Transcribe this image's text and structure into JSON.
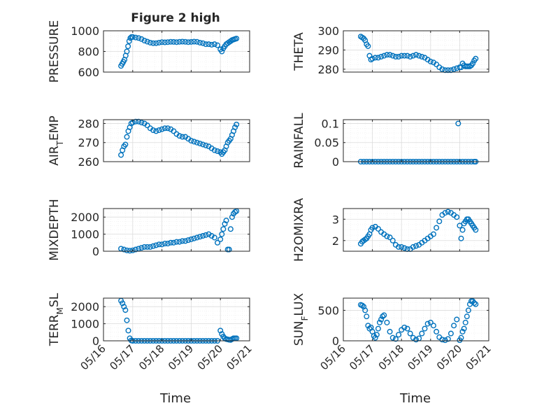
{
  "figure": {
    "title": "Figure 2 high"
  },
  "x_axis": {
    "label": "Time",
    "tick_labels": [
      "05/16",
      "05/17",
      "05/18",
      "05/19",
      "05/20",
      "05/21"
    ],
    "range": [
      0,
      5
    ]
  },
  "colors": {
    "marker": "#0072BD",
    "axes": "#262626",
    "grid": "#dcdcdc",
    "background": "#ffffff"
  },
  "chart_data": [
    {
      "type": "scatter",
      "ylabel": "PRESSURE",
      "ylim": [
        600,
        1000
      ],
      "yticks": [
        600,
        800,
        1000
      ],
      "ytick_labels": [
        "600",
        "800",
        "1000"
      ],
      "grid": true,
      "x": [
        0.6,
        0.64,
        0.68,
        0.72,
        0.76,
        0.8,
        0.84,
        0.88,
        0.92,
        0.96,
        1.0,
        1.1,
        1.2,
        1.3,
        1.4,
        1.5,
        1.6,
        1.7,
        1.8,
        1.9,
        2.0,
        2.1,
        2.2,
        2.3,
        2.4,
        2.5,
        2.6,
        2.7,
        2.8,
        2.9,
        3.0,
        3.1,
        3.2,
        3.3,
        3.4,
        3.5,
        3.6,
        3.7,
        3.8,
        3.9,
        4.0,
        4.05,
        4.1,
        4.15,
        4.2,
        4.25,
        4.3,
        4.35,
        4.4,
        4.45,
        4.5,
        4.55
      ],
      "y": [
        660,
        680,
        700,
        720,
        760,
        800,
        850,
        900,
        930,
        940,
        940,
        935,
        930,
        920,
        905,
        895,
        885,
        880,
        880,
        885,
        890,
        888,
        890,
        893,
        892,
        890,
        893,
        895,
        893,
        890,
        892,
        895,
        893,
        885,
        880,
        870,
        870,
        865,
        870,
        860,
        820,
        800,
        830,
        850,
        870,
        880,
        890,
        900,
        910,
        915,
        920,
        925
      ]
    },
    {
      "type": "scatter",
      "ylabel": "THETA",
      "ylim": [
        278.5,
        300
      ],
      "yticks": [
        280,
        290,
        300
      ],
      "ytick_labels": [
        "280",
        "290",
        "300"
      ],
      "grid": true,
      "x": [
        0.6,
        0.65,
        0.7,
        0.75,
        0.8,
        0.85,
        0.9,
        0.95,
        1.0,
        1.1,
        1.2,
        1.3,
        1.4,
        1.5,
        1.6,
        1.7,
        1.8,
        1.9,
        2.0,
        2.1,
        2.2,
        2.3,
        2.4,
        2.5,
        2.6,
        2.7,
        2.8,
        2.9,
        3.0,
        3.1,
        3.2,
        3.3,
        3.4,
        3.5,
        3.6,
        3.7,
        3.8,
        3.9,
        4.0,
        4.05,
        4.1,
        4.15,
        4.2,
        4.25,
        4.3,
        4.35,
        4.4,
        4.45,
        4.5,
        4.55
      ],
      "y": [
        297,
        296.5,
        296,
        295,
        293,
        292,
        287,
        285,
        285.5,
        286,
        286,
        286.5,
        287,
        287.5,
        287.5,
        287,
        286.5,
        286.5,
        287,
        287,
        287,
        286.5,
        287,
        287.5,
        287,
        286.5,
        286,
        285,
        284,
        283.5,
        282.5,
        281,
        280,
        279.5,
        279.5,
        279.5,
        280,
        280.5,
        281,
        281,
        283,
        282,
        281.5,
        281.5,
        281.5,
        281.5,
        282,
        283,
        284.5,
        285.5
      ]
    },
    {
      "type": "scatter",
      "ylabel": "AIR_TEMP",
      "ylim": [
        260,
        282
      ],
      "yticks": [
        260,
        270,
        280
      ],
      "ytick_labels": [
        "260",
        "270",
        "280"
      ],
      "grid": true,
      "x": [
        0.6,
        0.65,
        0.7,
        0.75,
        0.8,
        0.85,
        0.9,
        0.95,
        1.0,
        1.1,
        1.2,
        1.3,
        1.4,
        1.5,
        1.6,
        1.7,
        1.8,
        1.9,
        2.0,
        2.1,
        2.2,
        2.3,
        2.4,
        2.5,
        2.6,
        2.7,
        2.8,
        2.9,
        3.0,
        3.1,
        3.2,
        3.3,
        3.4,
        3.5,
        3.6,
        3.7,
        3.8,
        3.9,
        4.0,
        4.05,
        4.1,
        4.15,
        4.2,
        4.25,
        4.3,
        4.35,
        4.4,
        4.45,
        4.5,
        4.55
      ],
      "y": [
        263.5,
        266,
        268,
        269,
        273,
        276,
        278,
        280,
        280.5,
        281,
        281,
        280.5,
        280,
        279,
        277.5,
        276.5,
        276,
        276.5,
        277,
        277.5,
        277.5,
        277,
        276,
        274.5,
        273.5,
        273,
        273,
        272,
        271,
        270.5,
        270,
        269.5,
        269,
        268.5,
        268,
        267,
        266,
        265.5,
        265,
        264,
        265,
        266,
        268,
        270,
        271,
        272,
        274,
        276,
        278,
        279.5
      ]
    },
    {
      "type": "scatter",
      "ylabel": "RAINFALL",
      "ylim": [
        0,
        0.11
      ],
      "yticks": [
        0,
        0.05,
        0.1
      ],
      "ytick_labels": [
        "0",
        "0.05",
        "0.1"
      ],
      "grid": true,
      "x": [
        0.6,
        0.7,
        0.8,
        0.9,
        1.0,
        1.1,
        1.2,
        1.3,
        1.4,
        1.5,
        1.6,
        1.7,
        1.8,
        1.9,
        2.0,
        2.1,
        2.2,
        2.3,
        2.4,
        2.5,
        2.6,
        2.7,
        2.8,
        2.9,
        3.0,
        3.1,
        3.2,
        3.3,
        3.4,
        3.5,
        3.6,
        3.7,
        3.8,
        3.9,
        3.95,
        4.0,
        4.1,
        4.2,
        4.3,
        4.4,
        4.5,
        4.55
      ],
      "y": [
        0,
        0,
        0,
        0,
        0,
        0,
        0,
        0,
        0,
        0,
        0,
        0,
        0,
        0,
        0,
        0,
        0,
        0,
        0,
        0,
        0,
        0,
        0,
        0,
        0,
        0,
        0,
        0,
        0,
        0,
        0,
        0,
        0,
        0,
        0.1,
        0,
        0,
        0,
        0,
        0,
        0,
        0
      ]
    },
    {
      "type": "scatter",
      "ylabel": "MIXDEPTH",
      "ylim": [
        0,
        2500
      ],
      "yticks": [
        0,
        1000,
        2000
      ],
      "ytick_labels": [
        "0",
        "1000",
        "2000"
      ],
      "grid": true,
      "x": [
        0.6,
        0.7,
        0.8,
        0.9,
        1.0,
        1.1,
        1.2,
        1.3,
        1.4,
        1.5,
        1.6,
        1.7,
        1.8,
        1.9,
        2.0,
        2.1,
        2.2,
        2.3,
        2.4,
        2.5,
        2.6,
        2.7,
        2.8,
        2.9,
        3.0,
        3.1,
        3.2,
        3.3,
        3.4,
        3.5,
        3.6,
        3.7,
        3.8,
        3.9,
        4.0,
        4.05,
        4.1,
        4.15,
        4.2,
        4.25,
        4.3,
        4.35,
        4.4,
        4.45,
        4.5,
        4.55
      ],
      "y": [
        150,
        100,
        50,
        30,
        50,
        100,
        150,
        200,
        250,
        250,
        250,
        300,
        350,
        400,
        400,
        450,
        450,
        500,
        500,
        550,
        550,
        600,
        600,
        650,
        700,
        750,
        800,
        850,
        900,
        950,
        1000,
        900,
        800,
        500,
        700,
        1000,
        1300,
        1600,
        1800,
        100,
        100,
        1300,
        2000,
        2200,
        2300,
        2350
      ]
    },
    {
      "type": "scatter",
      "ylabel": "H2OMIXRA",
      "ylim": [
        1.5,
        3.5
      ],
      "yticks": [
        2,
        3
      ],
      "ytick_labels": [
        "2",
        "3"
      ],
      "grid": true,
      "x": [
        0.6,
        0.65,
        0.7,
        0.75,
        0.8,
        0.85,
        0.9,
        0.95,
        1.0,
        1.1,
        1.2,
        1.3,
        1.4,
        1.5,
        1.6,
        1.7,
        1.8,
        1.9,
        2.0,
        2.1,
        2.2,
        2.3,
        2.4,
        2.5,
        2.6,
        2.7,
        2.8,
        2.9,
        3.0,
        3.1,
        3.2,
        3.3,
        3.4,
        3.5,
        3.6,
        3.7,
        3.8,
        3.9,
        4.0,
        4.05,
        4.1,
        4.15,
        4.2,
        4.25,
        4.3,
        4.35,
        4.4,
        4.45,
        4.5,
        4.55
      ],
      "y": [
        1.85,
        1.95,
        2.0,
        2.05,
        2.1,
        2.2,
        2.3,
        2.5,
        2.6,
        2.65,
        2.55,
        2.4,
        2.3,
        2.2,
        2.15,
        2.0,
        1.8,
        1.7,
        1.7,
        1.65,
        1.6,
        1.6,
        1.7,
        1.75,
        1.8,
        1.9,
        2.0,
        2.1,
        2.2,
        2.3,
        2.6,
        2.9,
        3.2,
        3.3,
        3.35,
        3.3,
        3.2,
        3.1,
        2.7,
        2.1,
        2.5,
        2.8,
        2.9,
        3.0,
        3.0,
        2.9,
        2.8,
        2.7,
        2.6,
        2.5
      ]
    },
    {
      "type": "scatter",
      "ylabel": "TERR_MSL",
      "ylim": [
        0,
        2500
      ],
      "yticks": [
        0,
        1000,
        2000
      ],
      "ytick_labels": [
        "0",
        "1000",
        "2000"
      ],
      "grid": true,
      "x": [
        0.6,
        0.65,
        0.7,
        0.75,
        0.8,
        0.85,
        0.9,
        0.95,
        1.0,
        1.1,
        1.2,
        1.3,
        1.4,
        1.5,
        1.6,
        1.7,
        1.8,
        1.9,
        2.0,
        2.1,
        2.2,
        2.3,
        2.4,
        2.5,
        2.6,
        2.7,
        2.8,
        2.9,
        3.0,
        3.1,
        3.2,
        3.3,
        3.4,
        3.5,
        3.6,
        3.7,
        3.8,
        3.9,
        4.0,
        4.05,
        4.1,
        4.15,
        4.2,
        4.25,
        4.3,
        4.35,
        4.4,
        4.45,
        4.5,
        4.55
      ],
      "y": [
        2350,
        2200,
        2000,
        1800,
        1200,
        600,
        150,
        20,
        0,
        0,
        0,
        0,
        0,
        0,
        0,
        0,
        0,
        0,
        0,
        0,
        0,
        0,
        0,
        0,
        0,
        0,
        0,
        0,
        0,
        0,
        0,
        0,
        0,
        0,
        0,
        0,
        0,
        0,
        600,
        400,
        250,
        150,
        100,
        80,
        60,
        50,
        100,
        150,
        150,
        150
      ]
    },
    {
      "type": "scatter",
      "ylabel": "SUN_FLUX",
      "ylim": [
        0,
        700
      ],
      "yticks": [
        0,
        500
      ],
      "ytick_labels": [
        "0",
        "500"
      ],
      "grid": true,
      "x": [
        0.6,
        0.65,
        0.7,
        0.75,
        0.8,
        0.85,
        0.9,
        0.95,
        1.0,
        1.05,
        1.1,
        1.15,
        1.2,
        1.25,
        1.3,
        1.35,
        1.4,
        1.5,
        1.6,
        1.7,
        1.8,
        1.9,
        2.0,
        2.1,
        2.2,
        2.3,
        2.4,
        2.5,
        2.6,
        2.7,
        2.8,
        2.9,
        3.0,
        3.1,
        3.2,
        3.3,
        3.4,
        3.5,
        3.6,
        3.7,
        3.8,
        3.9,
        4.0,
        4.05,
        4.1,
        4.15,
        4.2,
        4.25,
        4.3,
        4.35,
        4.4,
        4.45,
        4.5,
        4.55
      ],
      "y": [
        590,
        580,
        560,
        500,
        400,
        250,
        200,
        220,
        150,
        80,
        50,
        100,
        200,
        300,
        350,
        400,
        420,
        300,
        150,
        50,
        30,
        100,
        180,
        220,
        200,
        120,
        50,
        20,
        40,
        120,
        200,
        280,
        300,
        250,
        150,
        60,
        20,
        10,
        30,
        120,
        250,
        350,
        10,
        50,
        150,
        200,
        300,
        400,
        500,
        600,
        650,
        650,
        620,
        600
      ]
    }
  ]
}
